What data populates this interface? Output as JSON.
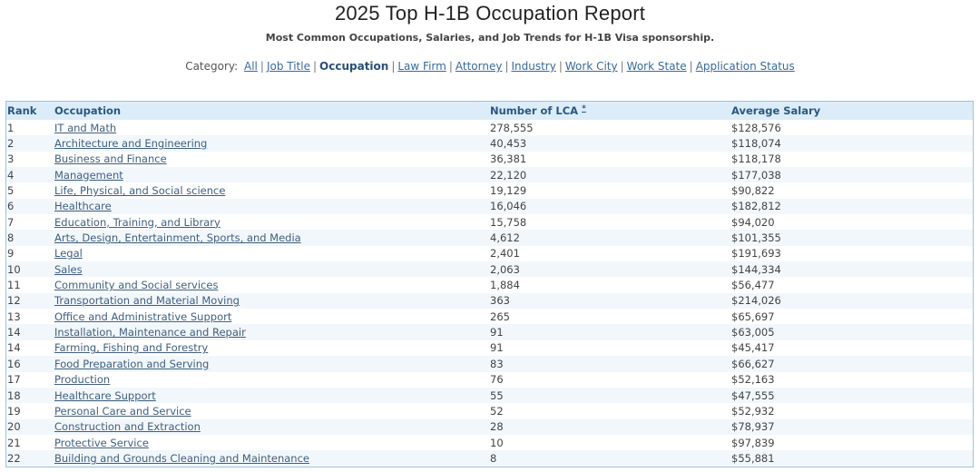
{
  "header": {
    "title": "2025 Top H-1B Occupation Report",
    "subtitle": "Most Common Occupations, Salaries, and Job Trends for H-1B Visa sponsorship."
  },
  "category_nav": {
    "label": "Category:",
    "items": [
      {
        "label": "All",
        "active": false
      },
      {
        "label": "Job Title",
        "active": false
      },
      {
        "label": "Occupation",
        "active": true
      },
      {
        "label": "Law Firm",
        "active": false
      },
      {
        "label": "Attorney",
        "active": false
      },
      {
        "label": "Industry",
        "active": false
      },
      {
        "label": "Work City",
        "active": false
      },
      {
        "label": "Work State",
        "active": false
      },
      {
        "label": "Application Status",
        "active": false
      }
    ]
  },
  "table": {
    "headers": {
      "rank": "Rank",
      "occupation": "Occupation",
      "lca": "Number of LCA",
      "lca_sort": "*",
      "salary": "Average Salary"
    },
    "rows": [
      {
        "rank": "1",
        "occupation": "IT and Math",
        "lca": "278,555",
        "salary": "$128,576"
      },
      {
        "rank": "2",
        "occupation": "Architecture and Engineering",
        "lca": "40,453",
        "salary": "$118,074"
      },
      {
        "rank": "3",
        "occupation": "Business and Finance",
        "lca": "36,381",
        "salary": "$118,178"
      },
      {
        "rank": "4",
        "occupation": "Management",
        "lca": "22,120",
        "salary": "$177,038"
      },
      {
        "rank": "5",
        "occupation": "Life, Physical, and Social science",
        "lca": "19,129",
        "salary": "$90,822"
      },
      {
        "rank": "6",
        "occupation": "Healthcare",
        "lca": "16,046",
        "salary": "$182,812"
      },
      {
        "rank": "7",
        "occupation": "Education, Training, and Library",
        "lca": "15,758",
        "salary": "$94,020"
      },
      {
        "rank": "8",
        "occupation": "Arts, Design, Entertainment, Sports, and Media",
        "lca": "4,612",
        "salary": "$101,355"
      },
      {
        "rank": "9",
        "occupation": "Legal",
        "lca": "2,401",
        "salary": "$191,693"
      },
      {
        "rank": "10",
        "occupation": "Sales",
        "lca": "2,063",
        "salary": "$144,334"
      },
      {
        "rank": "11",
        "occupation": "Community and Social services",
        "lca": "1,884",
        "salary": "$56,477"
      },
      {
        "rank": "12",
        "occupation": "Transportation and Material Moving",
        "lca": "363",
        "salary": "$214,026"
      },
      {
        "rank": "13",
        "occupation": "Office and Administrative Support",
        "lca": "265",
        "salary": "$65,697"
      },
      {
        "rank": "14",
        "occupation": "Installation, Maintenance and Repair",
        "lca": "91",
        "salary": "$63,005"
      },
      {
        "rank": "14",
        "occupation": "Farming, Fishing and Forestry",
        "lca": "91",
        "salary": "$45,417"
      },
      {
        "rank": "16",
        "occupation": "Food Preparation and Serving",
        "lca": "83",
        "salary": "$66,627"
      },
      {
        "rank": "17",
        "occupation": "Production",
        "lca": "76",
        "salary": "$52,163"
      },
      {
        "rank": "18",
        "occupation": "Healthcare Support",
        "lca": "55",
        "salary": "$47,555"
      },
      {
        "rank": "19",
        "occupation": "Personal Care and Service",
        "lca": "52",
        "salary": "$52,932"
      },
      {
        "rank": "20",
        "occupation": "Construction and Extraction",
        "lca": "28",
        "salary": "$78,937"
      },
      {
        "rank": "21",
        "occupation": "Protective Service",
        "lca": "10",
        "salary": "$97,839"
      },
      {
        "rank": "22",
        "occupation": "Building and Grounds Cleaning and Maintenance",
        "lca": "8",
        "salary": "$55,881"
      }
    ]
  }
}
